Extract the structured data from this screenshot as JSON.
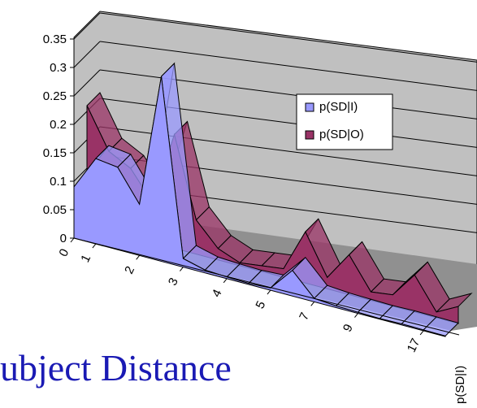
{
  "chart_data": {
    "type": "area",
    "style": "3d",
    "y_ticks": [
      "0",
      "0.05",
      "0.1",
      "0.15",
      "0.2",
      "0.25",
      "0.3",
      "0.35"
    ],
    "ylim": [
      0,
      0.35
    ],
    "x_tick_labels": [
      "0",
      "1",
      "2",
      "3",
      "4",
      "5",
      "7",
      "9",
      "17"
    ],
    "depth_label": "p(SD|I)",
    "legend_position": "right",
    "grid": true,
    "series": [
      {
        "name": "p(SD|I)",
        "color": "#9999ff",
        "values": [
          0.09,
          0.15,
          0.145,
          0.09,
          0.325,
          0.015,
          0.005,
          0.003,
          0.002,
          0.004,
          0.045,
          0.006,
          0.003,
          0.002,
          0.001,
          0.002,
          0.0015,
          0.001
        ]
      },
      {
        "name": "p(SD|O)",
        "color": "#993366",
        "values": [
          0.21,
          0.14,
          0.12,
          0.07,
          0.2,
          0.06,
          0.02,
          0.005,
          0.01,
          0.015,
          0.09,
          0.02,
          0.07,
          0.015,
          0.02,
          0.065,
          0.01,
          0.03
        ]
      }
    ]
  },
  "caption_text": "ubject Distance"
}
